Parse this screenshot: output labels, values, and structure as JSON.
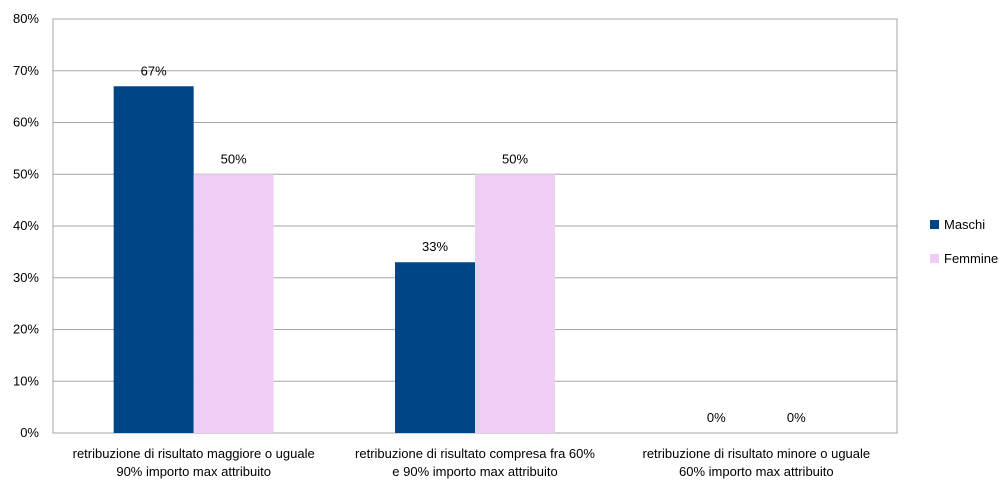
{
  "chart_data": {
    "type": "bar",
    "title": "",
    "xlabel": "",
    "ylabel": "",
    "ylim": [
      0,
      0.8
    ],
    "y_ticks": [
      "0%",
      "10%",
      "20%",
      "30%",
      "40%",
      "50%",
      "60%",
      "70%",
      "80%"
    ],
    "y_tick_values": [
      0,
      0.1,
      0.2,
      0.3,
      0.4,
      0.5,
      0.6,
      0.7,
      0.8
    ],
    "grid": true,
    "legend_position": "right",
    "categories": [
      [
        "retribuzione di risultato maggiore o uguale",
        "90% importo max attribuito"
      ],
      [
        "retribuzione di risultato compresa fra 60%",
        "e 90% importo max attribuito"
      ],
      [
        "retribuzione di risultato minore o uguale",
        "60% importo max attribuito"
      ]
    ],
    "series": [
      {
        "name": "Maschi",
        "color": "#004586",
        "values": [
          0.67,
          0.33,
          0.0
        ],
        "labels": [
          "67%",
          "33%",
          "0%"
        ]
      },
      {
        "name": "Femmine",
        "color": "#f0cdf5",
        "values": [
          0.5,
          0.5,
          0.0
        ],
        "labels": [
          "50%",
          "50%",
          "0%"
        ]
      }
    ]
  }
}
